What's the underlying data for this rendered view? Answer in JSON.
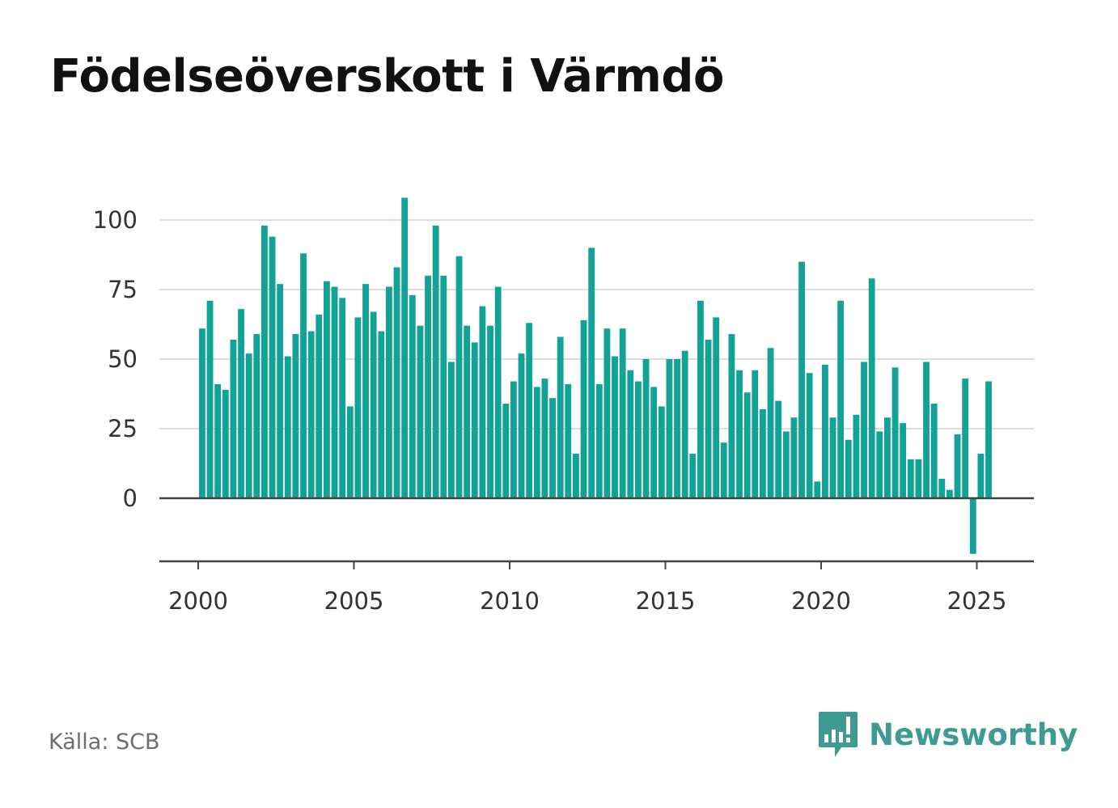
{
  "title": "Födelseöverskott i Värmdö",
  "source": "Källa: SCB",
  "brand": {
    "name": "Newsworthy",
    "icon": "newsworthy-logo-icon",
    "color": "#3f9b91"
  },
  "colors": {
    "bar": "#12a396",
    "grid": "#dddddd",
    "zero_line": "#444444",
    "text": "#333333"
  },
  "chart_data": {
    "type": "bar",
    "title": "Födelseöverskott i Värmdö",
    "xlabel": "",
    "ylabel": "",
    "xlim": [
      2000,
      2026.8
    ],
    "ylim": [
      -20,
      110
    ],
    "x_ticks": [
      2000,
      2005,
      2010,
      2015,
      2020,
      2025
    ],
    "y_ticks": [
      0,
      25,
      50,
      75,
      100
    ],
    "grid": true,
    "legend": "none",
    "frequency": "quarterly",
    "series": [
      {
        "start": 2000,
        "step": 0.25,
        "values": [
          61,
          71,
          41,
          39,
          57,
          68,
          52,
          59,
          98,
          94,
          77,
          51,
          59,
          88,
          60,
          66,
          78,
          76,
          72,
          33,
          65,
          77,
          67,
          60,
          76,
          83,
          108,
          73,
          62,
          80,
          98,
          80,
          49,
          87,
          62,
          56,
          69,
          62,
          76,
          34,
          42,
          52,
          63,
          40,
          43,
          36,
          58,
          41,
          16,
          64,
          90,
          41,
          61,
          51,
          61,
          46,
          42,
          50,
          40,
          33,
          50,
          50,
          53,
          16,
          71,
          57,
          65,
          20,
          59,
          46,
          38,
          46,
          32,
          54,
          35,
          24,
          29,
          85,
          45,
          6,
          48,
          29,
          71,
          21,
          30,
          49,
          79,
          24,
          29,
          47,
          27,
          14,
          14,
          49,
          34,
          7,
          3,
          23,
          43,
          -20,
          16,
          42
        ]
      }
    ]
  }
}
